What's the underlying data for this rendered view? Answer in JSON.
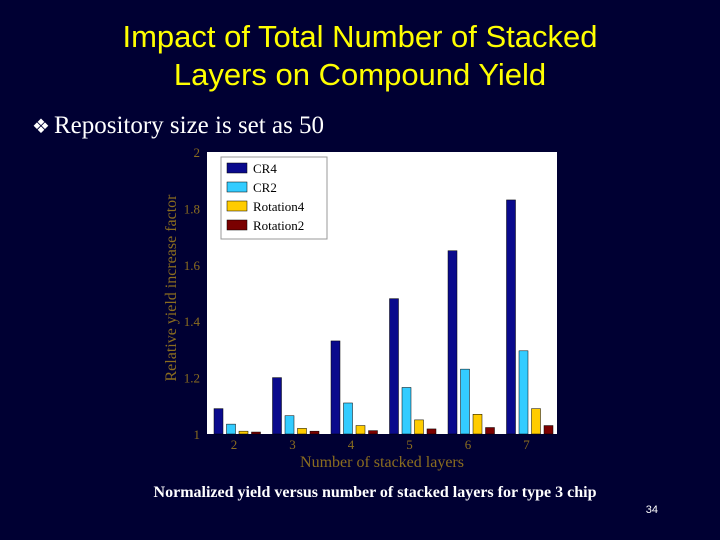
{
  "slide": {
    "title_line1": "Impact of Total Number of Stacked",
    "title_line2": "Layers on Compound Yield",
    "bullet_mark": "❖",
    "bullet_text": "Repository size is set as 50",
    "caption": "Normalized yield versus number of stacked layers for type 3 chip",
    "page_number": "34"
  },
  "colors": {
    "background": "#000033",
    "title": "#FFFF00",
    "axis_text": "#8B6D1F",
    "plot_bg": "#FFFFFF"
  },
  "chart_data": {
    "type": "bar",
    "xlabel": "Number of stacked layers",
    "ylabel": "Relative yield increase factor",
    "categories": [
      "2",
      "3",
      "4",
      "5",
      "6",
      "7"
    ],
    "ylim": [
      1,
      2
    ],
    "yticks": [
      "1",
      "1.2",
      "1.4",
      "1.6",
      "1.8",
      "2"
    ],
    "legend_position": "top-left",
    "series": [
      {
        "name": "CR4",
        "color": "#0A0A8C",
        "values": [
          1.09,
          1.2,
          1.33,
          1.48,
          1.65,
          1.83
        ]
      },
      {
        "name": "CR2",
        "color": "#33CCFF",
        "values": [
          1.035,
          1.065,
          1.11,
          1.165,
          1.23,
          1.295
        ]
      },
      {
        "name": "Rotation4",
        "color": "#FFCC00",
        "values": [
          1.01,
          1.02,
          1.03,
          1.05,
          1.07,
          1.09
        ]
      },
      {
        "name": "Rotation2",
        "color": "#7A0000",
        "values": [
          1.007,
          1.01,
          1.012,
          1.018,
          1.023,
          1.03
        ]
      }
    ]
  }
}
